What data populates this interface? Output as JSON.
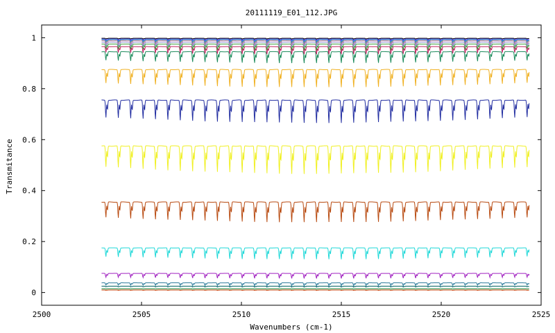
{
  "chart_data": {
    "type": "line",
    "title": "20111119_E01_112.JPG",
    "xlabel": "Wavenumbers (cm-1)",
    "ylabel": "Transmitance",
    "xlim": [
      2500,
      2525
    ],
    "ylim": [
      -0.05,
      1.05
    ],
    "x_ticks": [
      2500,
      2505,
      2510,
      2515,
      2520,
      2525
    ],
    "y_ticks": [
      0,
      0.2,
      0.4,
      0.6,
      0.8,
      1
    ],
    "y_tick_labels": [
      "0",
      "0.2",
      "0.4",
      "0.6",
      "0.8",
      "1"
    ],
    "x_range_of_data": [
      2503.0,
      2524.4
    ],
    "line_spacing_cm1": 0.62,
    "grid": false,
    "legend": "none",
    "series": [
      {
        "color": "#1a8a3a",
        "baseline": 0.015,
        "depth": 0.002
      },
      {
        "color": "#c23b00",
        "baseline": 0.01,
        "depth": 0.002
      },
      {
        "color": "#006060",
        "baseline": 0.025,
        "depth": 0.004
      },
      {
        "color": "#2a7a9a",
        "baseline": 0.038,
        "depth": 0.012
      },
      {
        "color": "#a020c0",
        "baseline": 0.075,
        "depth": 0.02
      },
      {
        "color": "#20d8d8",
        "baseline": 0.175,
        "depth": 0.045
      },
      {
        "color": "#b84a10",
        "baseline": 0.355,
        "depth": 0.08
      },
      {
        "color": "#f0f020",
        "baseline": 0.575,
        "depth": 0.11
      },
      {
        "color": "#202ca0",
        "baseline": 0.755,
        "depth": 0.09
      },
      {
        "color": "#f0b020",
        "baseline": 0.875,
        "depth": 0.07
      },
      {
        "color": "#1a8a5a",
        "baseline": 0.945,
        "depth": 0.045
      },
      {
        "color": "#c02060",
        "baseline": 0.965,
        "depth": 0.03
      },
      {
        "color": "#40a040",
        "baseline": 0.975,
        "depth": 0.025
      },
      {
        "color": "#9090d0",
        "baseline": 0.982,
        "depth": 0.02
      },
      {
        "color": "#c070a0",
        "baseline": 0.988,
        "depth": 0.015
      },
      {
        "color": "#30a0a0",
        "baseline": 0.992,
        "depth": 0.012
      },
      {
        "color": "#4040ff",
        "baseline": 0.995,
        "depth": 0.008
      },
      {
        "color": "#000000",
        "baseline": 0.998,
        "depth": 0.004
      }
    ]
  }
}
